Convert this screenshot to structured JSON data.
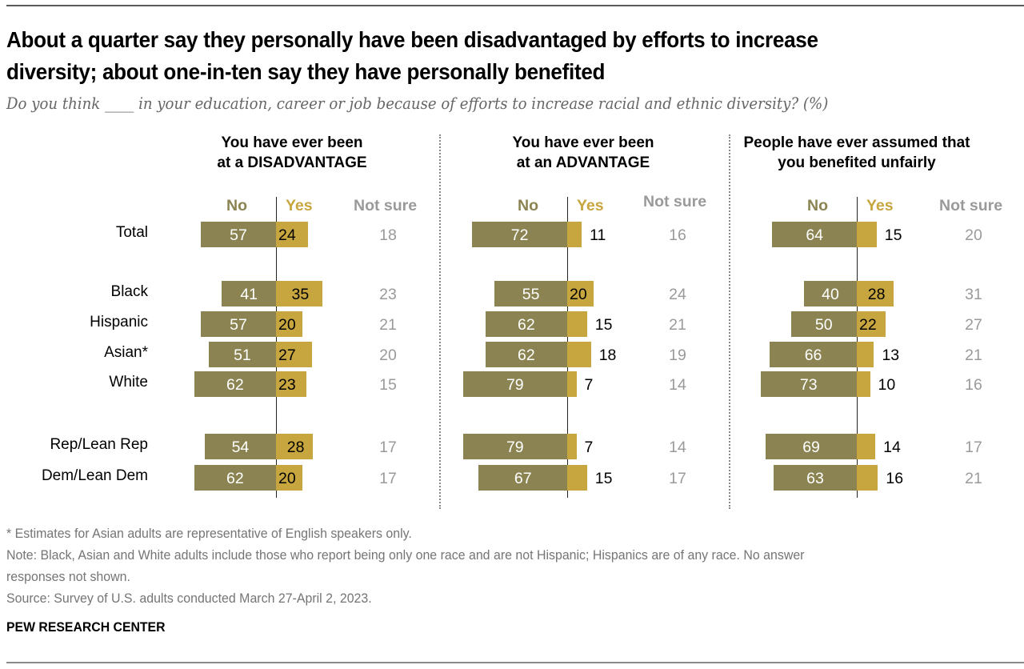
{
  "header": {
    "title_line1": "About a quarter say they personally have been disadvantaged by efforts to increase",
    "title_line2": "diversity; about one-in-ten say they have personally benefited",
    "subtitle": "Do you think ____ in your education, career or job because of efforts to increase racial and ethnic diversity? (%)"
  },
  "colors": {
    "no": "#8b8452",
    "yes": "#c8a63f",
    "not_sure": "#9a9a9a"
  },
  "chart_data": {
    "type": "bar",
    "subtype": "diverging-stacked-horizontal",
    "title": "About a quarter say they personally have been disadvantaged by efforts to increase diversity; about one-in-ten say they have personally benefited",
    "subtitle": "Do you think ____ in your education, career or job because of efforts to increase racial and ethnic diversity? (%)",
    "units": "%",
    "column_labels": {
      "no": "No",
      "yes": "Yes",
      "not_sure": "Not sure"
    },
    "categories": [
      "Total",
      "Black",
      "Hispanic",
      "Asian*",
      "White",
      "Rep/Lean Rep",
      "Dem/Lean Dem"
    ],
    "panels": [
      {
        "title_line1": "You have ever been",
        "title_line2": "at a DISADVANTAGE",
        "series": [
          {
            "name": "No",
            "values": [
              57,
              41,
              57,
              51,
              62,
              54,
              62
            ]
          },
          {
            "name": "Yes",
            "values": [
              24,
              35,
              20,
              27,
              23,
              28,
              20
            ]
          },
          {
            "name": "Not sure",
            "values": [
              18,
              23,
              21,
              20,
              15,
              17,
              17
            ]
          }
        ]
      },
      {
        "title_line1": "You have ever been",
        "title_line2": "at an ADVANTAGE",
        "series": [
          {
            "name": "No",
            "values": [
              72,
              55,
              62,
              62,
              79,
              79,
              67
            ]
          },
          {
            "name": "Yes",
            "values": [
              11,
              20,
              15,
              18,
              7,
              7,
              15
            ]
          },
          {
            "name": "Not sure",
            "values": [
              16,
              24,
              21,
              19,
              14,
              14,
              17
            ]
          }
        ]
      },
      {
        "title_line1": "People have ever assumed that",
        "title_line2": "you benefited unfairly",
        "series": [
          {
            "name": "No",
            "values": [
              64,
              40,
              50,
              66,
              73,
              69,
              63
            ]
          },
          {
            "name": "Yes",
            "values": [
              15,
              28,
              22,
              13,
              10,
              14,
              16
            ]
          },
          {
            "name": "Not sure",
            "values": [
              20,
              31,
              27,
              21,
              16,
              17,
              21
            ]
          }
        ]
      }
    ]
  },
  "footer": {
    "asterisk_note": "* Estimates for Asian adults are representative of English speakers only.",
    "note_line1": "Note: Black, Asian and White adults include those who report being only one race and are not Hispanic; Hispanics are of any race. No answer",
    "note_line2": "responses not shown.",
    "source": "Source: Survey of U.S. adults conducted March 27-April 2, 2023.",
    "brand": "PEW RESEARCH CENTER"
  }
}
